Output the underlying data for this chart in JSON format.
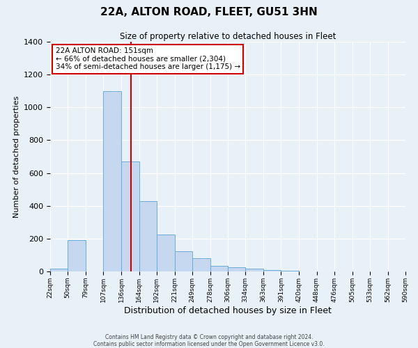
{
  "title": "22A, ALTON ROAD, FLEET, GU51 3HN",
  "subtitle": "Size of property relative to detached houses in Fleet",
  "xlabel": "Distribution of detached houses by size in Fleet",
  "ylabel": "Number of detached properties",
  "bin_labels": [
    "22sqm",
    "50sqm",
    "79sqm",
    "107sqm",
    "136sqm",
    "164sqm",
    "192sqm",
    "221sqm",
    "249sqm",
    "278sqm",
    "306sqm",
    "334sqm",
    "363sqm",
    "391sqm",
    "420sqm",
    "448sqm",
    "476sqm",
    "505sqm",
    "533sqm",
    "562sqm",
    "590sqm"
  ],
  "bin_edges": [
    22,
    50,
    79,
    107,
    136,
    164,
    192,
    221,
    249,
    278,
    306,
    334,
    363,
    391,
    420,
    448,
    476,
    505,
    533,
    562,
    590
  ],
  "bar_heights": [
    15,
    190,
    0,
    1100,
    670,
    430,
    225,
    125,
    80,
    35,
    25,
    15,
    10,
    5,
    2,
    1,
    0,
    0,
    0,
    0
  ],
  "bar_color": "#c5d8f0",
  "bar_edge_color": "#6aacd8",
  "vline_x": 151,
  "vline_color": "#cc0000",
  "annotation_title": "22A ALTON ROAD: 151sqm",
  "annotation_line1": "← 66% of detached houses are smaller (2,304)",
  "annotation_line2": "34% of semi-detached houses are larger (1,175) →",
  "annotation_box_color": "#cc0000",
  "ylim": [
    0,
    1400
  ],
  "yticks": [
    0,
    200,
    400,
    600,
    800,
    1000,
    1200,
    1400
  ],
  "footer1": "Contains HM Land Registry data © Crown copyright and database right 2024.",
  "footer2": "Contains public sector information licensed under the Open Government Licence v3.0.",
  "background_color": "#e8f0f8",
  "plot_background": "#e8f0f8",
  "grid_color": "#ffffff"
}
